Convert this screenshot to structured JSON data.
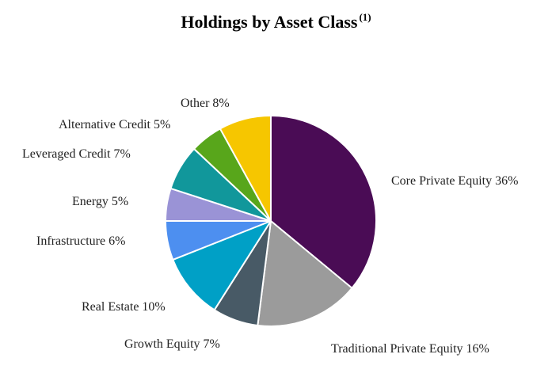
{
  "chart_data": {
    "type": "pie",
    "title": "Holdings by Asset Class",
    "title_footnote": "(1)",
    "slices": [
      {
        "label": "Core Private Equity",
        "value": 36,
        "display": "Core Private Equity 36%",
        "color": "#4A0C55"
      },
      {
        "label": "Traditional Private Equity",
        "value": 16,
        "display": "Traditional Private Equity 16%",
        "color": "#9B9B9B"
      },
      {
        "label": "Growth Equity",
        "value": 7,
        "display": "Growth Equity 7%",
        "color": "#485A66"
      },
      {
        "label": "Real Estate",
        "value": 10,
        "display": "Real Estate 10%",
        "color": "#00A0C6"
      },
      {
        "label": "Infrastructure",
        "value": 6,
        "display": "Infrastructure 6%",
        "color": "#4D8FF0"
      },
      {
        "label": "Energy",
        "value": 5,
        "display": "Energy 5%",
        "color": "#9A93D6"
      },
      {
        "label": "Leveraged Credit",
        "value": 7,
        "display": "Leveraged Credit 7%",
        "color": "#11979B"
      },
      {
        "label": "Alternative Credit",
        "value": 5,
        "display": "Alternative Credit 5%",
        "color": "#58A61B"
      },
      {
        "label": "Other",
        "value": 8,
        "display": "Other 8%",
        "color": "#F6C600"
      }
    ],
    "unit": "%",
    "legend": "none",
    "labels": "outside"
  }
}
